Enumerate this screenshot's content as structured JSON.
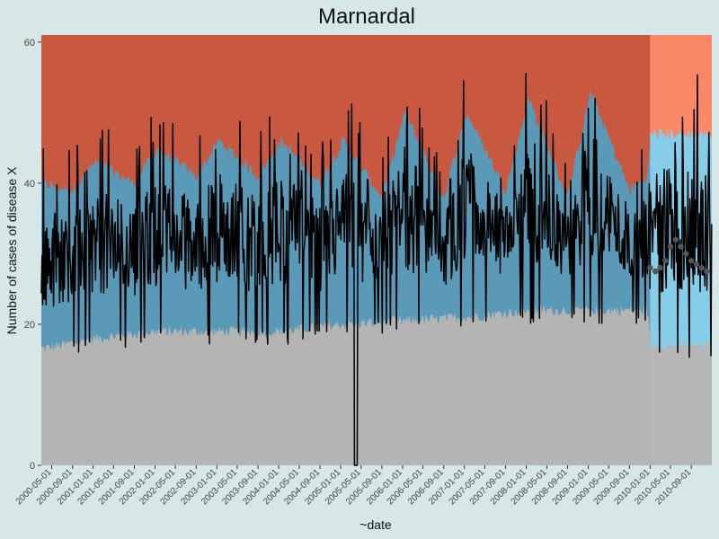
{
  "chart_data": {
    "type": "area",
    "title": "Marnardal",
    "xlabel": "~date",
    "ylabel": "Number of cases of disease X",
    "x_range": [
      "2000-03-01",
      "2010-12-31"
    ],
    "ylim": [
      0,
      61
    ],
    "y_ticks": [
      0,
      20,
      40,
      60
    ],
    "x_ticks": [
      "2000-05-01",
      "2000-09-01",
      "2001-01-01",
      "2001-05-01",
      "2001-09-01",
      "2002-01-01",
      "2002-05-01",
      "2002-09-01",
      "2003-01-01",
      "2003-05-01",
      "2003-09-01",
      "2004-01-01",
      "2004-05-01",
      "2004-09-01",
      "2005-01-01",
      "2005-05-01",
      "2005-09-01",
      "2006-01-01",
      "2006-05-01",
      "2006-09-01",
      "2007-01-01",
      "2007-05-01",
      "2007-09-01",
      "2008-01-01",
      "2008-05-01",
      "2008-09-01",
      "2009-01-01",
      "2009-05-01",
      "2009-09-01",
      "2010-01-01",
      "2010-05-01",
      "2010-09-01"
    ],
    "forecast_start": "2010-01-01",
    "grid": false,
    "colors": {
      "panel_bg": "#d7e7e7",
      "lower_band_historical": "#b4b4b4",
      "normal_band_historical": "#5a99b8",
      "upper_band_historical": "#c8583f",
      "lower_band_forecast": "#b6b6b6",
      "normal_band_forecast": "#86cde9",
      "upper_band_forecast": "#fb8769",
      "observed_line": "#000000",
      "forecast_points": "#555555"
    },
    "series": [
      {
        "role": "lower-threshold",
        "x": [
          "2000-03-01",
          "2001-01-15",
          "2002-01-15",
          "2003-01-15",
          "2004-01-15",
          "2005-01-15",
          "2006-01-15",
          "2007-01-15",
          "2008-01-15",
          "2009-01-15",
          "2009-12-20",
          "2010-01-01",
          "2010-06-01",
          "2010-12-31"
        ],
        "values": [
          16.5,
          18.0,
          19.0,
          19.0,
          19.0,
          20.0,
          20.5,
          21.0,
          22.0,
          22.0,
          22.0,
          17.0,
          17.0,
          17.0
        ]
      },
      {
        "role": "upper-threshold",
        "x": [
          "2000-03-01",
          "2000-09-01",
          "2001-01-15",
          "2001-09-01",
          "2002-01-15",
          "2002-09-01",
          "2003-01-15",
          "2003-09-01",
          "2004-01-15",
          "2004-09-01",
          "2005-01-15",
          "2005-09-01",
          "2006-01-15",
          "2006-09-01",
          "2007-01-15",
          "2007-09-01",
          "2008-01-15",
          "2008-09-01",
          "2009-01-15",
          "2009-09-01",
          "2009-12-20",
          "2010-01-01",
          "2010-06-01",
          "2010-12-31"
        ],
        "values": [
          40,
          39,
          43,
          40,
          45,
          41,
          46,
          41,
          46,
          40,
          46,
          38,
          50,
          38,
          50,
          39,
          52,
          38,
          53,
          39,
          41,
          47,
          47,
          47
        ]
      },
      {
        "role": "forecast-points",
        "x": [
          "2010-01-01",
          "2010-02-01",
          "2010-03-01",
          "2010-04-01",
          "2010-05-01",
          "2010-06-01",
          "2010-07-01",
          "2010-08-01",
          "2010-09-01",
          "2010-10-01",
          "2010-11-01",
          "2010-12-01"
        ],
        "values": [
          28,
          27.5,
          28,
          29,
          31,
          32,
          31,
          30,
          29,
          28.5,
          28,
          27.5
        ]
      }
    ],
    "observed_line_desc_sample": {
      "x": [
        "2005-03-20",
        "2005-04-05"
      ],
      "values": [
        40,
        0
      ]
    }
  }
}
